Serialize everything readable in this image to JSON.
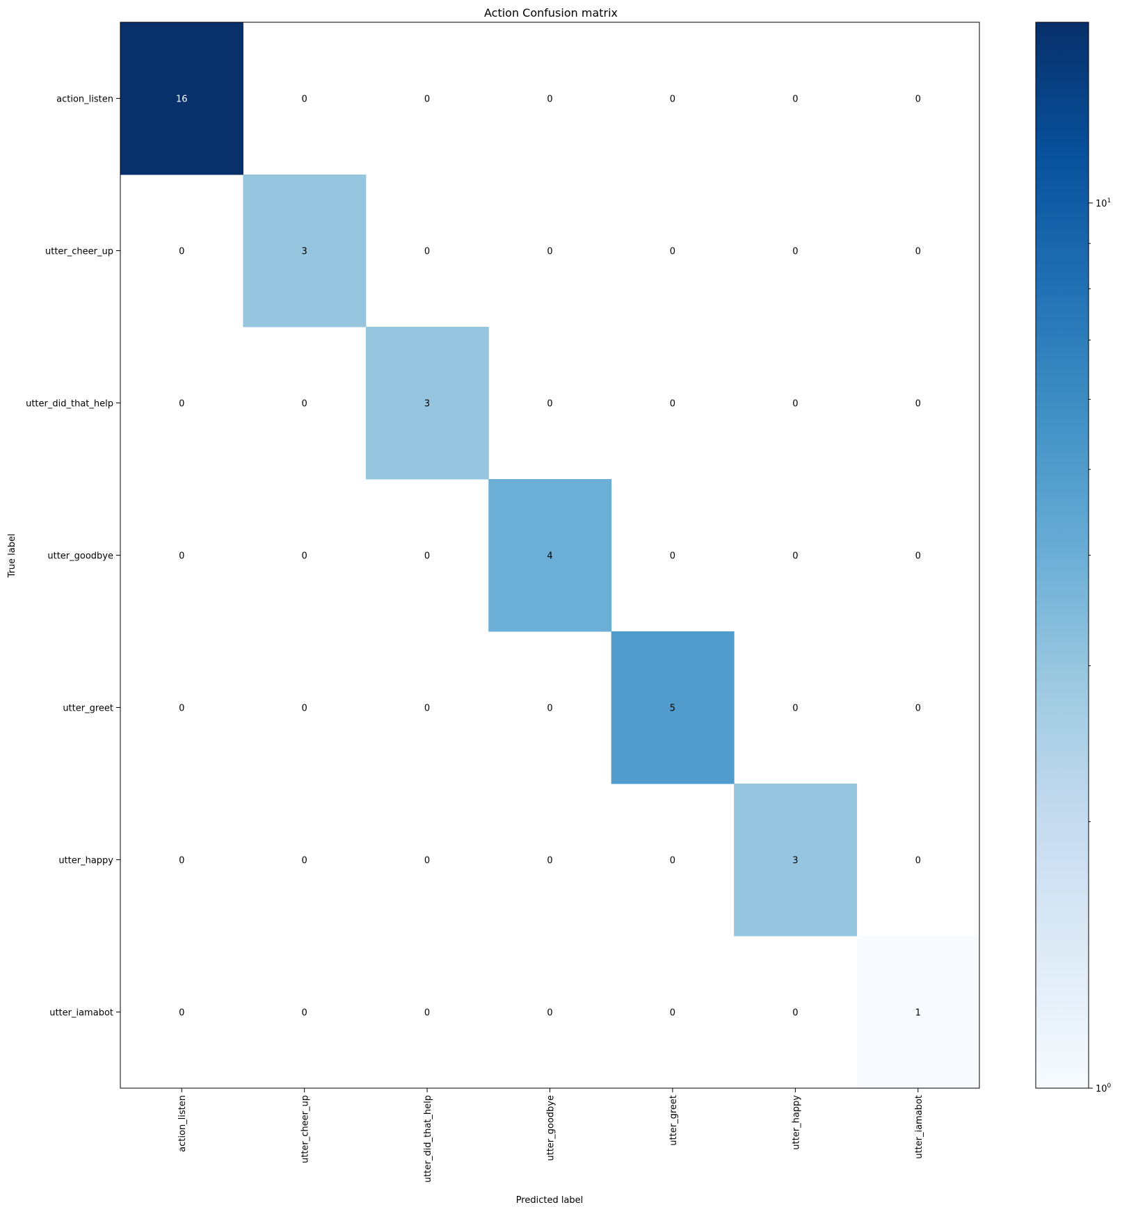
{
  "chart_data": {
    "type": "heatmap",
    "title": "Action Confusion matrix",
    "xlabel": "Predicted label",
    "ylabel": "True label",
    "x_categories": [
      "action_listen",
      "utter_cheer_up",
      "utter_did_that_help",
      "utter_goodbye",
      "utter_greet",
      "utter_happy",
      "utter_iamabot"
    ],
    "y_categories": [
      "action_listen",
      "utter_cheer_up",
      "utter_did_that_help",
      "utter_goodbye",
      "utter_greet",
      "utter_happy",
      "utter_iamabot"
    ],
    "matrix": [
      [
        16,
        0,
        0,
        0,
        0,
        0,
        0
      ],
      [
        0,
        3,
        0,
        0,
        0,
        0,
        0
      ],
      [
        0,
        0,
        3,
        0,
        0,
        0,
        0
      ],
      [
        0,
        0,
        0,
        4,
        0,
        0,
        0
      ],
      [
        0,
        0,
        0,
        0,
        5,
        0,
        0
      ],
      [
        0,
        0,
        0,
        0,
        0,
        3,
        0
      ],
      [
        0,
        0,
        0,
        0,
        0,
        0,
        1
      ]
    ],
    "colormap": "Blues",
    "color_scale": "log",
    "colorbar": {
      "range": [
        1,
        16
      ],
      "major_ticks": [
        {
          "base": "10",
          "exponent": "0",
          "value": 1
        },
        {
          "base": "10",
          "exponent": "1",
          "value": 10
        }
      ],
      "minor_ticks": [
        2,
        3,
        4,
        5,
        6,
        7,
        8,
        9
      ]
    },
    "grid": false,
    "colors": {
      "cmap_stops": [
        "#f7fbff",
        "#deebf7",
        "#c6dbef",
        "#9ecae1",
        "#6baed6",
        "#4292c6",
        "#2171b5",
        "#08519c",
        "#08306b"
      ],
      "text_dark": "#000000",
      "text_light": "#ffffff",
      "frame": "#000000"
    }
  }
}
